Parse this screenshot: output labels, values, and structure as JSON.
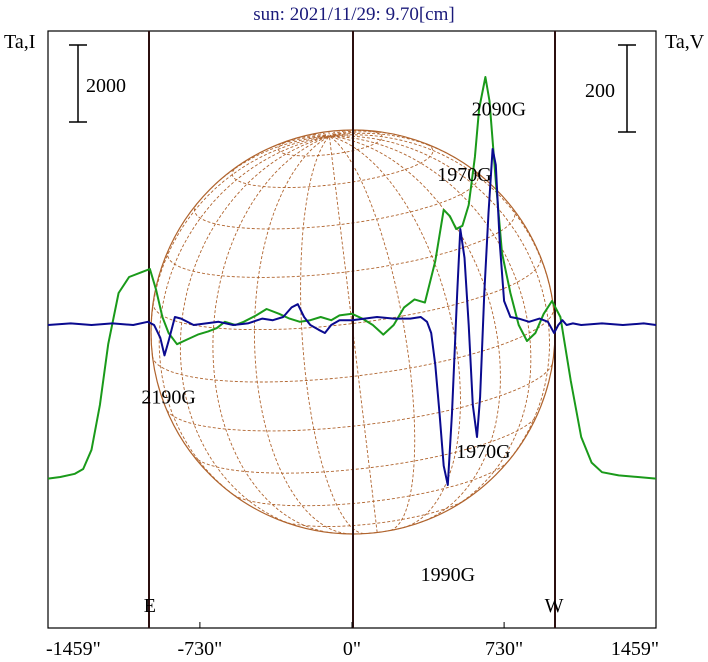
{
  "chart_data": {
    "type": "line",
    "title": "sun: 2021/11/29: 9.70[cm]",
    "ylabel_left": "Ta,I",
    "ylabel_right": "Ta,V",
    "scalebar_left": "2000",
    "scalebar_right": "200",
    "x_ticks": [
      {
        "value": -1459,
        "label": "-1459\""
      },
      {
        "value": -730,
        "label": "-730\""
      },
      {
        "value": 0,
        "label": "0\""
      },
      {
        "value": 730,
        "label": "730\""
      },
      {
        "value": 1459,
        "label": "1459\""
      }
    ],
    "xlim": [
      -1459,
      1459
    ],
    "limb_markers": [
      {
        "label": "E",
        "x": -970
      },
      {
        "label": "W",
        "x": 970
      }
    ],
    "series": [
      {
        "key": "I",
        "color": "#1a9a1a",
        "points": [
          [
            -1459,
            -0.96
          ],
          [
            -1400,
            -0.95
          ],
          [
            -1330,
            -0.93
          ],
          [
            -1290,
            -0.9
          ],
          [
            -1250,
            -0.78
          ],
          [
            -1210,
            -0.5
          ],
          [
            -1170,
            -0.12
          ],
          [
            -1120,
            0.2
          ],
          [
            -1070,
            0.3
          ],
          [
            -1010,
            0.33
          ],
          [
            -970,
            0.35
          ],
          [
            -940,
            0.22
          ],
          [
            -910,
            0.05
          ],
          [
            -880,
            -0.05
          ],
          [
            -840,
            -0.12
          ],
          [
            -790,
            -0.09
          ],
          [
            -740,
            -0.06
          ],
          [
            -690,
            -0.04
          ],
          [
            -650,
            -0.02
          ],
          [
            -610,
            0.02
          ],
          [
            -560,
            0.0
          ],
          [
            -520,
            0.02
          ],
          [
            -460,
            0.06
          ],
          [
            -410,
            0.1
          ],
          [
            -350,
            0.07
          ],
          [
            -300,
            0.04
          ],
          [
            -250,
            0.02
          ],
          [
            -200,
            0.03
          ],
          [
            -150,
            0.05
          ],
          [
            -100,
            0.03
          ],
          [
            -60,
            0.06
          ],
          [
            0,
            0.07
          ],
          [
            50,
            0.04
          ],
          [
            100,
            0.0
          ],
          [
            150,
            -0.06
          ],
          [
            200,
            0.0
          ],
          [
            250,
            0.11
          ],
          [
            300,
            0.16
          ],
          [
            350,
            0.14
          ],
          [
            400,
            0.4
          ],
          [
            440,
            0.72
          ],
          [
            470,
            0.68
          ],
          [
            500,
            0.6
          ],
          [
            530,
            0.62
          ],
          [
            560,
            0.75
          ],
          [
            590,
            1.05
          ],
          [
            610,
            1.35
          ],
          [
            640,
            1.55
          ],
          [
            660,
            1.4
          ],
          [
            690,
            0.9
          ],
          [
            720,
            0.45
          ],
          [
            760,
            0.2
          ],
          [
            800,
            0.0
          ],
          [
            840,
            -0.1
          ],
          [
            880,
            -0.05
          ],
          [
            920,
            0.07
          ],
          [
            960,
            0.15
          ],
          [
            1000,
            0.05
          ],
          [
            1050,
            -0.35
          ],
          [
            1100,
            -0.7
          ],
          [
            1150,
            -0.86
          ],
          [
            1200,
            -0.92
          ],
          [
            1280,
            -0.94
          ],
          [
            1459,
            -0.96
          ]
        ]
      },
      {
        "key": "V",
        "color": "#0a0a8f",
        "points": [
          [
            -1459,
            0.0
          ],
          [
            -1350,
            0.01
          ],
          [
            -1250,
            0.0
          ],
          [
            -1150,
            0.01
          ],
          [
            -1050,
            0.0
          ],
          [
            -980,
            0.02
          ],
          [
            -950,
            0.0
          ],
          [
            -920,
            -0.08
          ],
          [
            -900,
            -0.19
          ],
          [
            -880,
            -0.1
          ],
          [
            -850,
            0.05
          ],
          [
            -820,
            0.04
          ],
          [
            -760,
            0.0
          ],
          [
            -700,
            0.01
          ],
          [
            -640,
            0.02
          ],
          [
            -570,
            0.0
          ],
          [
            -500,
            0.01
          ],
          [
            -430,
            0.04
          ],
          [
            -380,
            0.03
          ],
          [
            -330,
            0.05
          ],
          [
            -290,
            0.11
          ],
          [
            -260,
            0.13
          ],
          [
            -230,
            0.05
          ],
          [
            -200,
            0.0
          ],
          [
            -160,
            -0.03
          ],
          [
            -130,
            -0.05
          ],
          [
            -100,
            0.0
          ],
          [
            -60,
            0.03
          ],
          [
            0,
            0.03
          ],
          [
            60,
            0.04
          ],
          [
            120,
            0.05
          ],
          [
            200,
            0.04
          ],
          [
            280,
            0.04
          ],
          [
            330,
            0.05
          ],
          [
            360,
            0.02
          ],
          [
            380,
            -0.05
          ],
          [
            400,
            -0.25
          ],
          [
            420,
            -0.55
          ],
          [
            440,
            -0.88
          ],
          [
            460,
            -1.0
          ],
          [
            480,
            -0.55
          ],
          [
            505,
            0.2
          ],
          [
            520,
            0.6
          ],
          [
            540,
            0.42
          ],
          [
            560,
            0.0
          ],
          [
            580,
            -0.5
          ],
          [
            600,
            -0.7
          ],
          [
            615,
            -0.45
          ],
          [
            635,
            0.2
          ],
          [
            655,
            0.7
          ],
          [
            675,
            1.1
          ],
          [
            690,
            1.0
          ],
          [
            710,
            0.5
          ],
          [
            730,
            0.15
          ],
          [
            760,
            0.05
          ],
          [
            800,
            0.04
          ],
          [
            850,
            0.02
          ],
          [
            900,
            0.04
          ],
          [
            940,
            0.02
          ],
          [
            970,
            -0.05
          ],
          [
            990,
            0.0
          ],
          [
            1010,
            0.03
          ],
          [
            1030,
            0.0
          ],
          [
            1060,
            0.01
          ],
          [
            1100,
            0.0
          ],
          [
            1200,
            0.01
          ],
          [
            1300,
            0.0
          ],
          [
            1400,
            0.01
          ],
          [
            1459,
            0.0
          ]
        ]
      }
    ],
    "annotations": [
      {
        "text": "2090G",
        "x": 705,
        "v": 1.31
      },
      {
        "text": "1970G",
        "x": 540,
        "v": 0.9
      },
      {
        "text": "2190G",
        "x": -880,
        "v": -0.49
      },
      {
        "text": "1970G",
        "x": 630,
        "v": -0.83
      },
      {
        "text": "1990G",
        "x": 460,
        "v": -1.6
      }
    ],
    "grid": false,
    "legend": "none"
  }
}
